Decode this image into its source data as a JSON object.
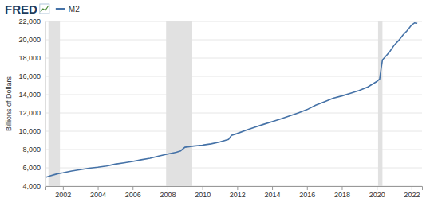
{
  "chart_data": {
    "type": "line",
    "source_logo": "FRED",
    "y_label": "Billions of Dollars",
    "legend": "top-left",
    "grid": true,
    "x": [
      2001.0,
      2001.25,
      2001.5,
      2001.75,
      2002.0,
      2002.5,
      2003.0,
      2003.5,
      2004.0,
      2004.5,
      2005.0,
      2005.5,
      2006.0,
      2006.5,
      2007.0,
      2007.5,
      2008.0,
      2008.5,
      2008.75,
      2009.0,
      2009.5,
      2010.0,
      2010.5,
      2011.0,
      2011.5,
      2011.67,
      2012.0,
      2012.5,
      2013.0,
      2013.5,
      2014.0,
      2014.5,
      2015.0,
      2015.5,
      2016.0,
      2016.5,
      2017.0,
      2017.5,
      2018.0,
      2018.5,
      2019.0,
      2019.5,
      2020.0,
      2020.17,
      2020.25,
      2020.33,
      2020.5,
      2020.75,
      2021.0,
      2021.25,
      2021.5,
      2021.75,
      2022.0,
      2022.17,
      2022.33
    ],
    "series": [
      {
        "name": "M2",
        "color": "#4572a7",
        "values": [
          4950,
          5100,
          5250,
          5380,
          5450,
          5650,
          5800,
          5950,
          6060,
          6200,
          6400,
          6550,
          6700,
          6880,
          7040,
          7280,
          7500,
          7700,
          7850,
          8250,
          8380,
          8480,
          8620,
          8820,
          9100,
          9550,
          9750,
          10100,
          10440,
          10750,
          11040,
          11350,
          11670,
          12000,
          12360,
          12850,
          13220,
          13600,
          13860,
          14150,
          14460,
          14850,
          15430,
          15700,
          16800,
          17800,
          18150,
          18700,
          19400,
          19900,
          20500,
          21000,
          21600,
          21850,
          21800
        ]
      }
    ],
    "recessions": [
      [
        2001.17,
        2001.83
      ],
      [
        2007.92,
        2009.42
      ],
      [
        2020.08,
        2020.33
      ]
    ],
    "xlim": [
      2001.0,
      2022.6
    ],
    "xticks": [
      2002,
      2004,
      2006,
      2008,
      2010,
      2012,
      2014,
      2016,
      2018,
      2020,
      2022
    ],
    "ylim": [
      4000,
      22000
    ],
    "yticks": [
      {
        "value": 4000,
        "label": "4,000"
      },
      {
        "value": 6000,
        "label": "6,000"
      },
      {
        "value": 8000,
        "label": "8,000"
      },
      {
        "value": 10000,
        "label": "10,000"
      },
      {
        "value": 12000,
        "label": "12,000"
      },
      {
        "value": 14000,
        "label": "14,000"
      },
      {
        "value": 16000,
        "label": "16,000"
      },
      {
        "value": 18000,
        "label": "18,000"
      },
      {
        "value": 20000,
        "label": "20,000"
      },
      {
        "value": 22000,
        "label": "22,000"
      }
    ]
  }
}
